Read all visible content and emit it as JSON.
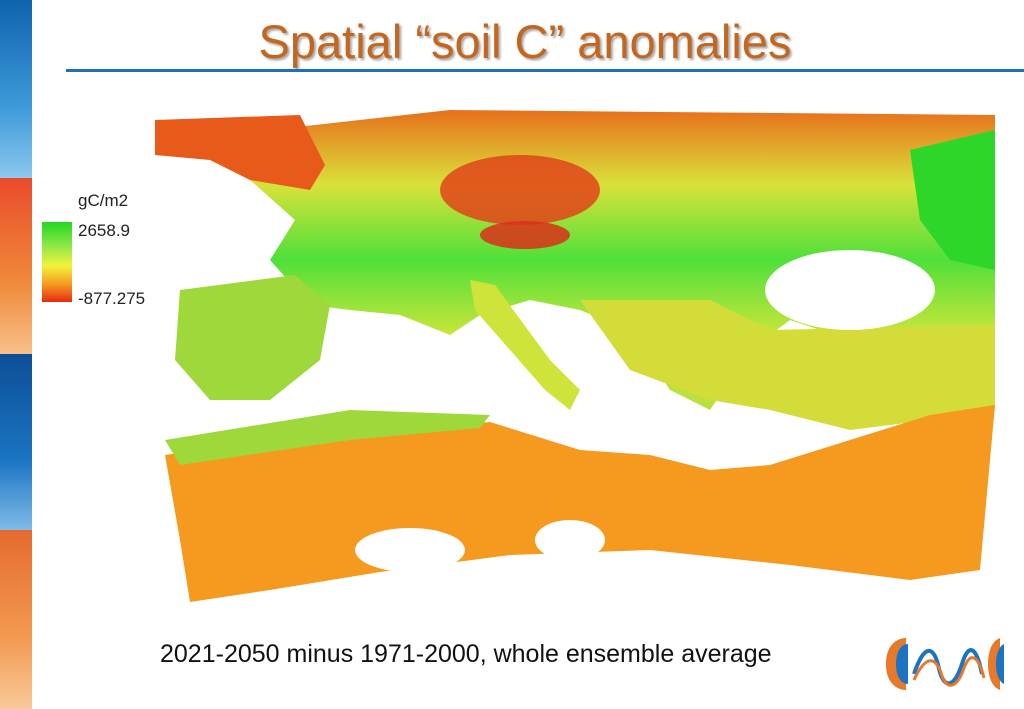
{
  "title": "Spatial “soil C” anomalies",
  "legend": {
    "unit": "gC/m2",
    "max": "2658.9",
    "min": "-877.275",
    "colors": [
      "#22d622",
      "#f2f23a",
      "#f59a1e",
      "#e62a14"
    ]
  },
  "caption": "2021-2050 minus 1971-2000, whole ensemble average",
  "map": {
    "region": "Europe and Mediterranean",
    "colors": {
      "high": "#22d622",
      "mid": "#f2f23a",
      "low": "#f59a1e",
      "min": "#e62a14",
      "water": "#ffffff"
    }
  },
  "logo_icon": "wave-logo-icon"
}
